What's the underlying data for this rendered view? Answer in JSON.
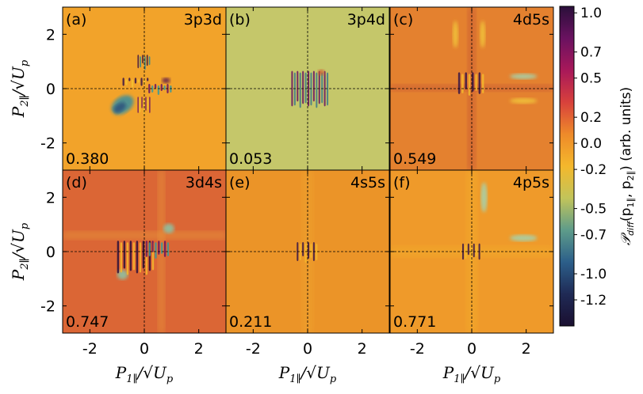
{
  "chart_data": {
    "type": "heatmap",
    "panels": [
      {
        "label": "(a)",
        "config": "3p3d",
        "value": "0.380",
        "background": "#f2a32a"
      },
      {
        "label": "(b)",
        "config": "3p4d",
        "value": "0.053",
        "background": "#c5c76a"
      },
      {
        "label": "(c)",
        "config": "4d5s",
        "value": "0.549",
        "background": "#e4812f"
      },
      {
        "label": "(d)",
        "config": "3d4s",
        "value": "0.747",
        "background": "#db6635"
      },
      {
        "label": "(e)",
        "config": "4s5s",
        "value": "0.211",
        "background": "#eb9428"
      },
      {
        "label": "(f)",
        "config": "4p5s",
        "value": "0.771",
        "background": "#ef9a2a"
      }
    ],
    "xlim": [
      -3,
      3
    ],
    "ylim": [
      -3,
      3
    ],
    "xticks": [
      "-2",
      "0",
      "2"
    ],
    "yticks": [
      "2",
      "0",
      "-2"
    ],
    "xlabel": "P",
    "xlabel_sub": "1∥",
    "xlabel_rest": "/√U",
    "xlabel_sub2": "p",
    "ylabel": "P",
    "ylabel_sub": "2∥",
    "ylabel_rest": "/√U",
    "ylabel_sub2": "p",
    "colorbar": {
      "ticks": [
        "1.0",
        "0.7",
        "0.5",
        "0.2",
        "0.0",
        "-0.2",
        "-0.5",
        "-0.7",
        "-1.0",
        "-1.2"
      ],
      "range": [
        -1.4,
        1.05
      ],
      "label": "P_diff(p1∥, p2∥) (arb. units)",
      "label_parts": [
        "𝒫",
        "diff",
        "(p",
        "1∥",
        ", p",
        "2∥",
        ") (arb. units)"
      ],
      "stops": [
        "#2a0f3a",
        "#6a1260",
        "#a8185a",
        "#d8413c",
        "#ee8a2a",
        "#f4b82c",
        "#c2c45a",
        "#5e9c8a",
        "#2c5f8a",
        "#1f2a55",
        "#1a0f30"
      ]
    }
  }
}
